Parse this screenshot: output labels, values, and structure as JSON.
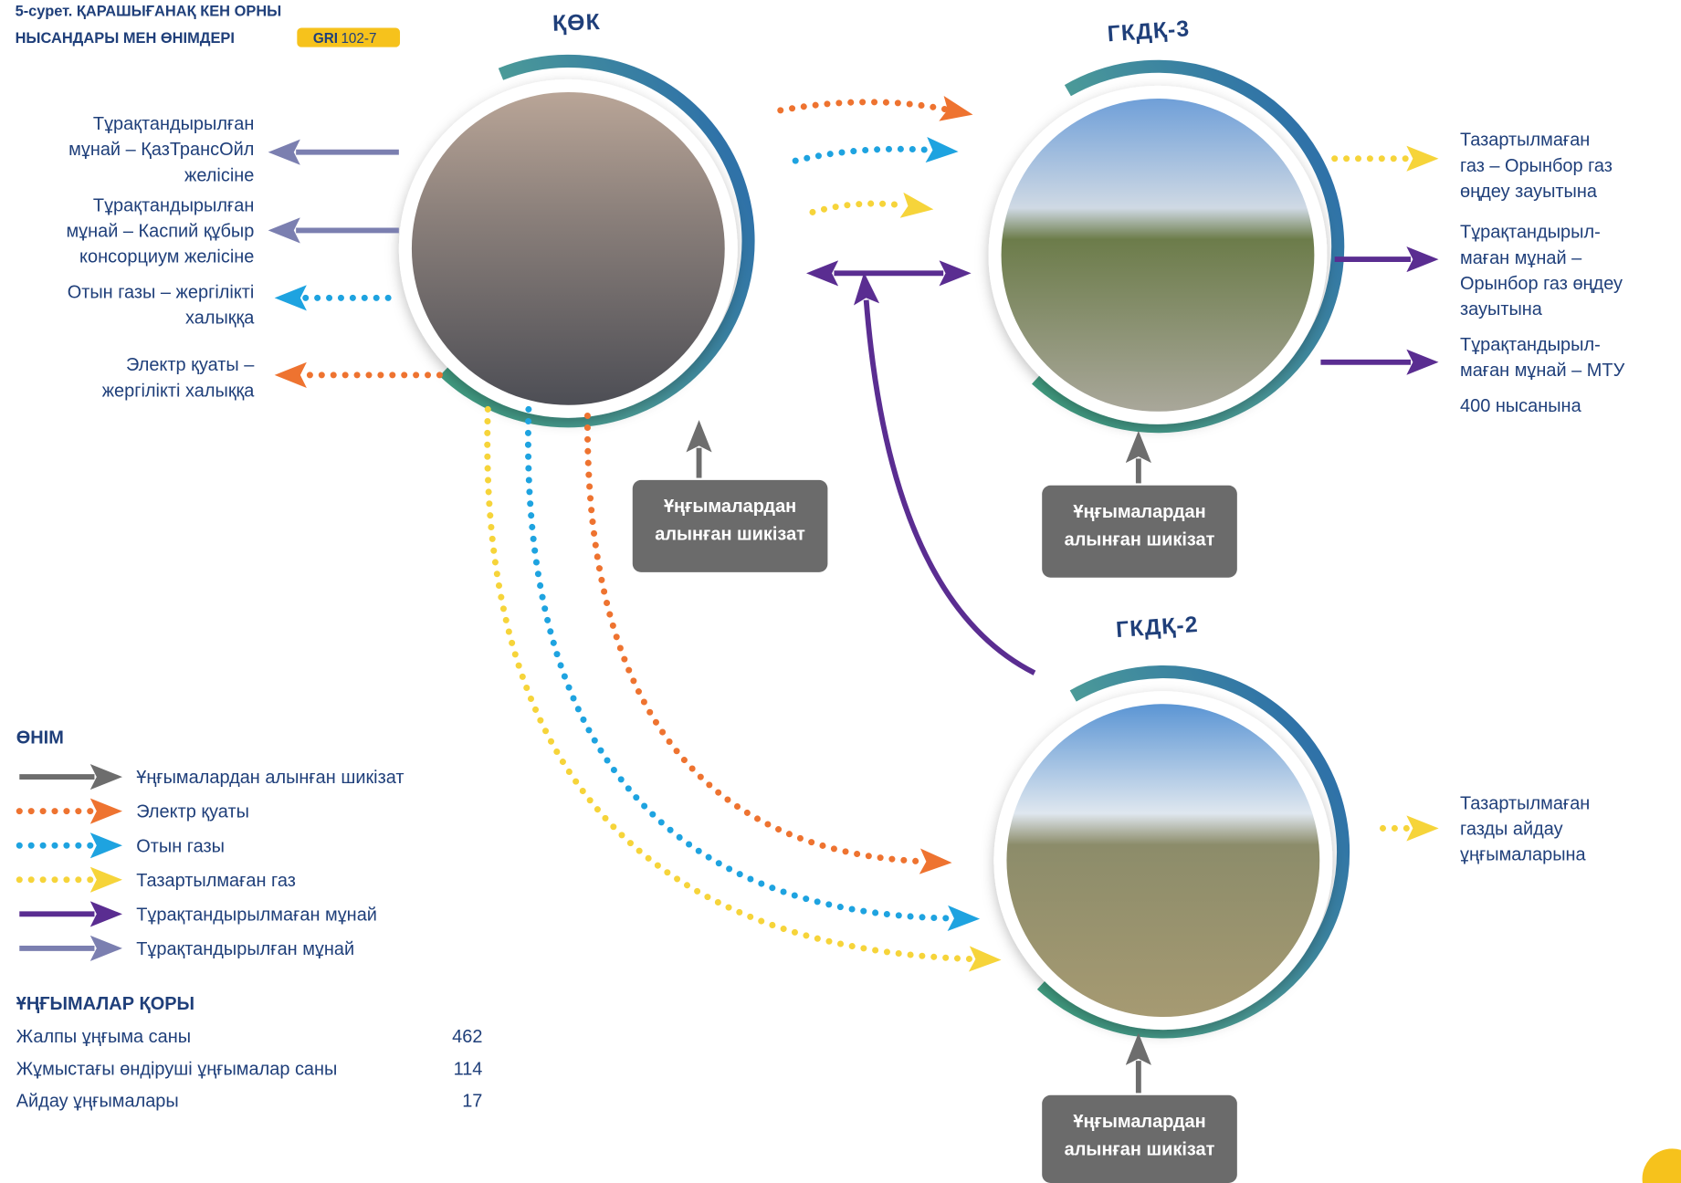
{
  "title": [
    "5-сурет. ҚАРАШЫҒАНАҚ КЕН ОРНЫ",
    "НЫСАНДАРЫ МЕН ӨНІМДЕРІ"
  ],
  "badge": {
    "label": "GRI",
    "code": "102-7"
  },
  "nodes": [
    {
      "label": "ҚӨК"
    },
    {
      "label": "ГКДҚ-3"
    },
    {
      "label": "ГКДҚ-2"
    }
  ],
  "source_boxes": [
    [
      "Ұңғымалардан",
      "алынған шикізат"
    ],
    [
      "Ұңғымалардан",
      "алынған шикізат"
    ],
    [
      "Ұңғымалардан",
      "алынған шикізат"
    ]
  ],
  "outputs_left": [
    [
      "Тұрақтандырылған",
      "мұнай – ҚазТрансОйл",
      "желісіне"
    ],
    [
      "Тұрақтандырылған",
      "мұнай – Каспий құбыр",
      "консорциум желісіне"
    ],
    [
      "Отын газы – жергілікті",
      "халыққа"
    ],
    [
      "Электр қуаты –",
      "жергілікті халыққа"
    ]
  ],
  "outputs_right": [
    [
      "Тазартылмаған",
      "газ – Орынбор газ",
      "өңдеу зауытына"
    ],
    [
      "Тұрақтандырыл-",
      "маған мұнай –",
      "Орынбор газ өңдеу",
      "зауытына"
    ],
    [
      "Тұрақтандырыл-",
      "маған мұнай – МТУ",
      "400 нысанына"
    ],
    [
      "Тазартылмаған",
      "газды айдау",
      "ұңғымаларына"
    ]
  ],
  "legend": {
    "title": "ӨНІМ",
    "items": [
      {
        "label": "Ұңғымалардан алынған шикізат",
        "color": "#6d6d6d",
        "dotted": false
      },
      {
        "label": "Электр қуаты",
        "color": "#ee7330",
        "dotted": true
      },
      {
        "label": "Отын газы",
        "color": "#1ea3e0",
        "dotted": true
      },
      {
        "label": "Тазартылмаған газ",
        "color": "#f6d43a",
        "dotted": true
      },
      {
        "label": "Тұрақтандырылмаған мұнай",
        "color": "#5a2d91",
        "dotted": false
      },
      {
        "label": "Тұрақтандырылған мұнай",
        "color": "#7b7fb0",
        "dotted": false
      }
    ]
  },
  "wells": {
    "title": "ҰҢҒЫМАЛАР ҚОРЫ",
    "rows": [
      [
        "Жалпы ұңғыма саны",
        "462"
      ],
      [
        "Жұмыстағы өндіруші ұңғымалар саны",
        "114"
      ],
      [
        "Айдау ұңғымалары",
        "17"
      ]
    ]
  }
}
